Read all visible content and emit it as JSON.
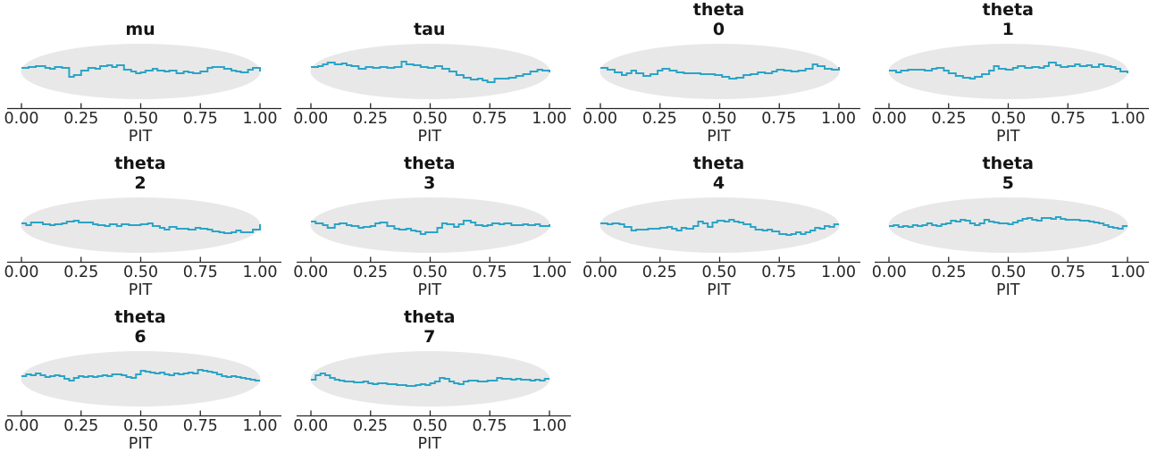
{
  "figure": {
    "background": "#ffffff",
    "line_color": "#2BA4C6",
    "band_color": "#E8E8E8",
    "axis_color": "#262626",
    "tick_text_color": "#262626",
    "title_color": "#141414"
  },
  "axis": {
    "xlabel": "PIT",
    "xlim": [
      0,
      1
    ],
    "tick_values": [
      0,
      0.25,
      0.5,
      0.75,
      1
    ],
    "tick_labels": [
      "0.00",
      "0.25",
      "0.50",
      "0.75",
      "1.00"
    ],
    "ticks_direction": "in",
    "y_axis_shown": false
  },
  "chart_data": [
    {
      "id": "mu",
      "type": "line",
      "subtype": "loo-pit-ecdf-step",
      "title": "mu",
      "xlabel": "PIT",
      "xlim": [
        0,
        1
      ],
      "band": "ellipse-envelope",
      "y_units": "pixel deviation from band center (positive = up, band half-height = 31)",
      "x": [
        0,
        0.03,
        0.06,
        0.08,
        0.1,
        0.12,
        0.14,
        0.17,
        0.2,
        0.22,
        0.25,
        0.28,
        0.31,
        0.33,
        0.36,
        0.38,
        0.4,
        0.43,
        0.46,
        0.48,
        0.5,
        0.52,
        0.55,
        0.57,
        0.6,
        0.62,
        0.65,
        0.68,
        0.7,
        0.72,
        0.75,
        0.78,
        0.8,
        0.82,
        0.85,
        0.88,
        0.9,
        0.92,
        0.95,
        0.97,
        1.0
      ],
      "y_dev": [
        4,
        5,
        6,
        6,
        4,
        3,
        5,
        4,
        -6,
        -4,
        1,
        4,
        3,
        6,
        7,
        5,
        7,
        2,
        0,
        -2,
        -1,
        1,
        3,
        1,
        0,
        1,
        -2,
        0,
        -1,
        -2,
        0,
        4,
        5,
        5,
        3,
        1,
        0,
        -1,
        2,
        4,
        0
      ]
    },
    {
      "id": "tau",
      "type": "line",
      "subtype": "loo-pit-ecdf-step",
      "title": "tau",
      "xlabel": "PIT",
      "xlim": [
        0,
        1
      ],
      "band": "ellipse-envelope",
      "y_units": "pixel deviation from band center (positive = up, band half-height = 31)",
      "x": [
        0,
        0.03,
        0.05,
        0.07,
        0.1,
        0.13,
        0.15,
        0.17,
        0.2,
        0.23,
        0.26,
        0.29,
        0.32,
        0.35,
        0.38,
        0.4,
        0.43,
        0.46,
        0.49,
        0.52,
        0.55,
        0.58,
        0.61,
        0.64,
        0.67,
        0.7,
        0.72,
        0.74,
        0.77,
        0.8,
        0.83,
        0.86,
        0.89,
        0.92,
        0.95,
        0.97,
        1.0
      ],
      "y_dev": [
        5,
        6,
        8,
        10,
        8,
        9,
        7,
        6,
        3,
        5,
        4,
        5,
        4,
        5,
        11,
        8,
        7,
        5,
        4,
        6,
        3,
        0,
        -4,
        -7,
        -9,
        -8,
        -10,
        -12,
        -8,
        -8,
        -7,
        -5,
        -3,
        0,
        2,
        1,
        -1
      ]
    },
    {
      "id": "theta-0",
      "type": "line",
      "subtype": "loo-pit-ecdf-step",
      "title": "theta\n0",
      "xlabel": "PIT",
      "xlim": [
        0,
        1
      ],
      "band": "ellipse-envelope",
      "y_units": "pixel deviation from band center (positive = up, band half-height = 31)",
      "x": [
        0,
        0.03,
        0.06,
        0.09,
        0.11,
        0.13,
        0.15,
        0.18,
        0.21,
        0.24,
        0.26,
        0.29,
        0.32,
        0.35,
        0.38,
        0.42,
        0.45,
        0.48,
        0.51,
        0.54,
        0.57,
        0.6,
        0.63,
        0.66,
        0.69,
        0.72,
        0.74,
        0.77,
        0.8,
        0.83,
        0.86,
        0.89,
        0.91,
        0.94,
        0.97,
        1.0
      ],
      "y_dev": [
        4,
        2,
        -1,
        -4,
        -2,
        1,
        -2,
        -5,
        -3,
        1,
        3,
        1,
        -1,
        -2,
        -2,
        -3,
        -3,
        -4,
        -6,
        -8,
        -7,
        -4,
        -3,
        -1,
        -2,
        0,
        2,
        1,
        0,
        1,
        3,
        8,
        6,
        3,
        2,
        5
      ]
    },
    {
      "id": "theta-1",
      "type": "line",
      "subtype": "loo-pit-ecdf-step",
      "title": "theta\n1",
      "xlabel": "PIT",
      "xlim": [
        0,
        1
      ],
      "band": "ellipse-envelope",
      "y_units": "pixel deviation from band center (positive = up, band half-height = 31)",
      "x": [
        0,
        0.03,
        0.05,
        0.08,
        0.12,
        0.15,
        0.18,
        0.2,
        0.23,
        0.25,
        0.28,
        0.31,
        0.34,
        0.36,
        0.39,
        0.42,
        0.44,
        0.46,
        0.49,
        0.52,
        0.54,
        0.57,
        0.6,
        0.63,
        0.65,
        0.67,
        0.7,
        0.72,
        0.75,
        0.78,
        0.8,
        0.83,
        0.85,
        0.88,
        0.9,
        0.93,
        0.95,
        0.97,
        1.0
      ],
      "y_dev": [
        1,
        -1,
        1,
        2,
        2,
        1,
        3,
        4,
        1,
        -2,
        -5,
        -7,
        -8,
        -6,
        -3,
        1,
        6,
        3,
        2,
        4,
        6,
        4,
        5,
        4,
        6,
        10,
        7,
        5,
        6,
        8,
        6,
        7,
        5,
        8,
        6,
        5,
        3,
        0,
        -2
      ]
    },
    {
      "id": "theta-2",
      "type": "line",
      "subtype": "loo-pit-ecdf-step",
      "title": "theta\n2",
      "xlabel": "PIT",
      "xlim": [
        0,
        1
      ],
      "band": "ellipse-envelope",
      "y_units": "pixel deviation from band center (positive = up, band half-height = 31)",
      "x": [
        0,
        0.02,
        0.04,
        0.07,
        0.09,
        0.12,
        0.14,
        0.17,
        0.19,
        0.22,
        0.24,
        0.27,
        0.3,
        0.32,
        0.35,
        0.37,
        0.4,
        0.42,
        0.45,
        0.47,
        0.5,
        0.53,
        0.55,
        0.58,
        0.6,
        0.62,
        0.65,
        0.68,
        0.7,
        0.73,
        0.75,
        0.78,
        0.8,
        0.83,
        0.85,
        0.88,
        0.9,
        0.92,
        0.95,
        0.97,
        1.0
      ],
      "y_dev": [
        2,
        0,
        3,
        3,
        1,
        0,
        1,
        2,
        4,
        5,
        3,
        3,
        1,
        0,
        -1,
        1,
        -1,
        1,
        0,
        0,
        1,
        2,
        -1,
        -3,
        -5,
        -2,
        -4,
        -4,
        -5,
        -3,
        -4,
        -5,
        -7,
        -8,
        -9,
        -8,
        -6,
        -8,
        -8,
        -5,
        1
      ]
    },
    {
      "id": "theta-3",
      "type": "line",
      "subtype": "loo-pit-ecdf-step",
      "title": "theta\n3",
      "xlabel": "PIT",
      "xlim": [
        0,
        1
      ],
      "band": "ellipse-envelope",
      "y_units": "pixel deviation from band center (positive = up, band half-height = 31)",
      "x": [
        0,
        0.02,
        0.05,
        0.07,
        0.1,
        0.12,
        0.15,
        0.17,
        0.2,
        0.22,
        0.25,
        0.27,
        0.29,
        0.32,
        0.35,
        0.37,
        0.4,
        0.42,
        0.44,
        0.46,
        0.48,
        0.51,
        0.53,
        0.55,
        0.57,
        0.6,
        0.62,
        0.64,
        0.67,
        0.69,
        0.72,
        0.74,
        0.76,
        0.79,
        0.81,
        0.84,
        0.86,
        0.89,
        0.91,
        0.94,
        0.96,
        1.0
      ],
      "y_dev": [
        4,
        2,
        0,
        -3,
        1,
        2,
        0,
        -1,
        -3,
        -2,
        -1,
        2,
        3,
        -1,
        -4,
        -5,
        -4,
        -6,
        -7,
        -10,
        -8,
        -8,
        -3,
        2,
        1,
        -2,
        1,
        5,
        3,
        0,
        -1,
        0,
        2,
        1,
        2,
        0,
        0,
        1,
        0,
        1,
        -1,
        1
      ]
    },
    {
      "id": "theta-4",
      "type": "line",
      "subtype": "loo-pit-ecdf-step",
      "title": "theta\n4",
      "xlabel": "PIT",
      "xlim": [
        0,
        1
      ],
      "band": "ellipse-envelope",
      "y_units": "pixel deviation from band center (positive = up, band half-height = 31)",
      "x": [
        0,
        0.03,
        0.05,
        0.08,
        0.1,
        0.13,
        0.15,
        0.18,
        0.2,
        0.23,
        0.25,
        0.28,
        0.3,
        0.32,
        0.34,
        0.36,
        0.39,
        0.41,
        0.43,
        0.45,
        0.47,
        0.49,
        0.52,
        0.54,
        0.56,
        0.58,
        0.6,
        0.63,
        0.65,
        0.68,
        0.7,
        0.72,
        0.75,
        0.78,
        0.8,
        0.82,
        0.84,
        0.86,
        0.88,
        0.9,
        0.92,
        0.94,
        0.96,
        0.98,
        1.0
      ],
      "y_dev": [
        2,
        1,
        2,
        1,
        -2,
        -6,
        -5,
        -5,
        -4,
        -4,
        -3,
        -2,
        -4,
        -6,
        -3,
        -4,
        -1,
        4,
        2,
        -2,
        3,
        5,
        4,
        6,
        4,
        3,
        1,
        -2,
        -5,
        -6,
        -5,
        -7,
        -10,
        -11,
        -10,
        -8,
        -10,
        -8,
        -6,
        -3,
        -4,
        -1,
        -2,
        1,
        1
      ]
    },
    {
      "id": "theta-5",
      "type": "line",
      "subtype": "loo-pit-ecdf-step",
      "title": "theta\n5",
      "xlabel": "PIT",
      "xlim": [
        0,
        1
      ],
      "band": "ellipse-envelope",
      "y_units": "pixel deviation from band center (positive = up, band half-height = 31)",
      "x": [
        0,
        0.02,
        0.04,
        0.06,
        0.08,
        0.1,
        0.12,
        0.14,
        0.16,
        0.18,
        0.2,
        0.22,
        0.24,
        0.26,
        0.28,
        0.3,
        0.32,
        0.34,
        0.36,
        0.38,
        0.4,
        0.42,
        0.44,
        0.46,
        0.48,
        0.5,
        0.52,
        0.54,
        0.56,
        0.58,
        0.6,
        0.62,
        0.64,
        0.66,
        0.68,
        0.7,
        0.72,
        0.74,
        0.76,
        0.78,
        0.8,
        0.82,
        0.84,
        0.86,
        0.88,
        0.9,
        0.92,
        0.94,
        0.96,
        0.98,
        1.0
      ],
      "y_dev": [
        -1,
        0,
        -2,
        -1,
        -2,
        0,
        -1,
        0,
        2,
        0,
        -1,
        1,
        2,
        5,
        4,
        6,
        5,
        2,
        0,
        2,
        6,
        4,
        3,
        2,
        2,
        1,
        3,
        5,
        7,
        8,
        6,
        5,
        8,
        8,
        7,
        9,
        7,
        6,
        6,
        6,
        5,
        5,
        4,
        3,
        2,
        0,
        -2,
        -3,
        -4,
        -1,
        -1
      ]
    },
    {
      "id": "theta-6",
      "type": "line",
      "subtype": "loo-pit-ecdf-step",
      "title": "theta\n6",
      "xlabel": "PIT",
      "xlim": [
        0,
        1
      ],
      "band": "ellipse-envelope",
      "y_units": "pixel deviation from band center (positive = up, band half-height = 31)",
      "x": [
        0,
        0.02,
        0.04,
        0.06,
        0.08,
        0.1,
        0.12,
        0.14,
        0.16,
        0.18,
        0.2,
        0.22,
        0.24,
        0.26,
        0.28,
        0.3,
        0.32,
        0.34,
        0.36,
        0.38,
        0.4,
        0.42,
        0.44,
        0.46,
        0.48,
        0.5,
        0.52,
        0.54,
        0.56,
        0.58,
        0.6,
        0.62,
        0.64,
        0.66,
        0.68,
        0.7,
        0.72,
        0.74,
        0.76,
        0.78,
        0.8,
        0.82,
        0.84,
        0.86,
        0.88,
        0.9,
        0.92,
        0.94,
        0.96,
        0.98,
        1.0
      ],
      "y_dev": [
        3,
        5,
        4,
        6,
        4,
        2,
        3,
        4,
        3,
        0,
        -2,
        1,
        3,
        2,
        3,
        2,
        3,
        4,
        3,
        5,
        5,
        4,
        2,
        1,
        5,
        9,
        8,
        7,
        6,
        7,
        5,
        4,
        6,
        5,
        6,
        7,
        6,
        10,
        9,
        8,
        7,
        5,
        3,
        2,
        3,
        2,
        1,
        0,
        -1,
        -2,
        -2
      ]
    },
    {
      "id": "theta-7",
      "type": "line",
      "subtype": "loo-pit-ecdf-step",
      "title": "theta\n7",
      "xlabel": "PIT",
      "xlim": [
        0,
        1
      ],
      "band": "ellipse-envelope",
      "y_units": "pixel deviation from band center (positive = up, band half-height = 31)",
      "x": [
        0,
        0.02,
        0.04,
        0.06,
        0.08,
        0.1,
        0.12,
        0.14,
        0.16,
        0.18,
        0.2,
        0.22,
        0.24,
        0.26,
        0.28,
        0.3,
        0.32,
        0.34,
        0.36,
        0.38,
        0.4,
        0.42,
        0.44,
        0.46,
        0.48,
        0.5,
        0.52,
        0.54,
        0.56,
        0.58,
        0.6,
        0.62,
        0.64,
        0.66,
        0.68,
        0.7,
        0.72,
        0.74,
        0.76,
        0.78,
        0.8,
        0.82,
        0.84,
        0.86,
        0.88,
        0.9,
        0.92,
        0.94,
        0.96,
        0.98,
        1.0
      ],
      "y_dev": [
        -1,
        4,
        6,
        4,
        1,
        -1,
        -2,
        -3,
        -3,
        -4,
        -4,
        -3,
        -5,
        -6,
        -5,
        -5,
        -6,
        -6,
        -7,
        -7,
        -8,
        -8,
        -7,
        -6,
        -7,
        -5,
        -3,
        1,
        0,
        -3,
        -5,
        -6,
        -3,
        -2,
        -2,
        -3,
        -3,
        -2,
        -2,
        1,
        0,
        0,
        -1,
        0,
        -1,
        -1,
        -2,
        -1,
        -2,
        0,
        0
      ]
    }
  ]
}
